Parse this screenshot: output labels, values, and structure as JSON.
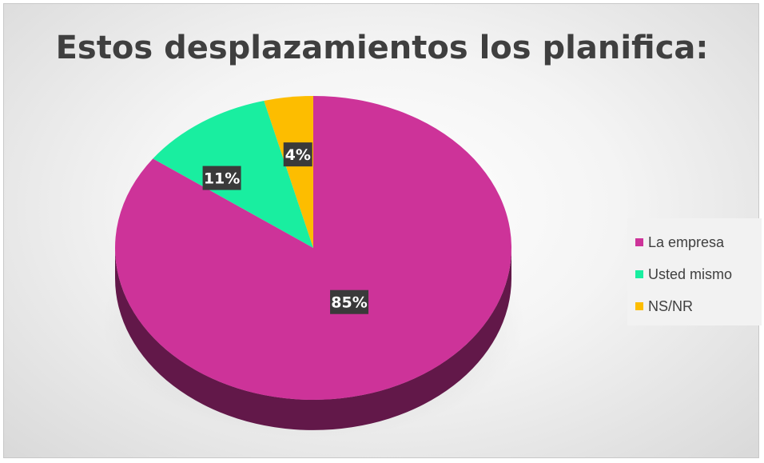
{
  "chart_data": {
    "type": "pie",
    "title": "Estos desplazamientos los planifica:",
    "categories": [
      "La empresa",
      "Usted mismo",
      "NS/NR"
    ],
    "values": [
      85,
      11,
      4
    ],
    "data_labels": [
      "85%",
      "11%",
      "4%"
    ],
    "colors": [
      "#cd3399",
      "#19eea0",
      "#fdbd00"
    ],
    "legend_position": "right"
  }
}
